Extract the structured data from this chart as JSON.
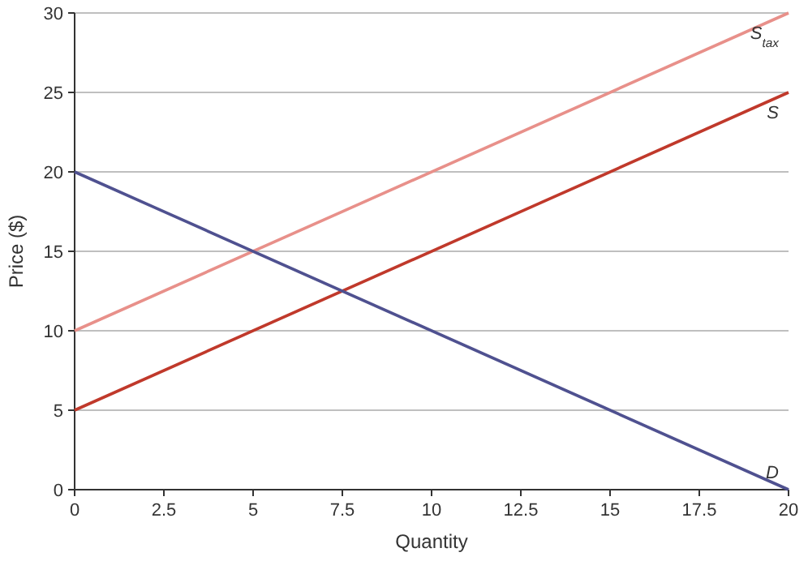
{
  "chart_data": {
    "type": "line",
    "xlabel": "Quantity",
    "ylabel": "Price ($)",
    "x": [
      0,
      20
    ],
    "series": [
      {
        "name": "S$_{tax}$",
        "color": "#e8908a",
        "values": [
          10,
          30
        ]
      },
      {
        "name": "S",
        "color": "#c0392b",
        "values": [
          5,
          25
        ]
      },
      {
        "name": "D",
        "color": "#4f5190",
        "values": [
          20,
          0
        ]
      }
    ],
    "xlim": [
      0,
      20
    ],
    "xticks": [
      0,
      2.5,
      5,
      7.5,
      10,
      12.5,
      15,
      17.5,
      20
    ],
    "ylim": [
      0,
      30
    ],
    "yticks": [
      0,
      5,
      10,
      15,
      20,
      25,
      30
    ],
    "grid": "y",
    "marker": "none",
    "line_style": "solid"
  }
}
